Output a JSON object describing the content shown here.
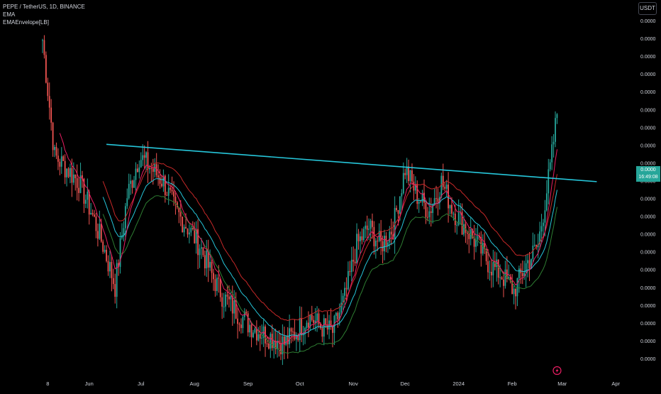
{
  "header": {
    "symbol_line": "PEPE / TetherUS, 1D, BINANCE",
    "indicator_1": "EMA",
    "indicator_2": "EMAEnvelope[LB]"
  },
  "price_axis": {
    "currency": "USDT",
    "tick_labels": [
      "0.0000",
      "0.0000",
      "0.0000",
      "0.0000",
      "0.0000",
      "0.0000",
      "0.0000",
      "0.0000",
      "0.0000",
      "0.0000",
      "0.0000",
      "0.0000",
      "0.0000",
      "0.0000",
      "0.0000",
      "0.0000",
      "0.0000",
      "0.0000",
      "0.0000",
      "0.0000"
    ],
    "last_price": "0.0000",
    "countdown": "16:49:08"
  },
  "time_axis": {
    "tick_labels": [
      "8",
      "Jun",
      "Jul",
      "Aug",
      "Sep",
      "Oct",
      "Nov",
      "Dec",
      "2024",
      "Feb",
      "Mar",
      "Apr"
    ]
  },
  "chart_data": {
    "type": "line",
    "title": "PEPE / TetherUS, 1D, BINANCE",
    "xlabel": "",
    "ylabel": "",
    "x_range": [
      "2023-05-05",
      "2024-04-12"
    ],
    "y_scale": "log",
    "series": [
      {
        "name": "PEPE / TetherUS",
        "style": "candles",
        "x": [
          "2023-05-05",
          "2023-05-12",
          "2023-05-19",
          "2023-05-26",
          "2023-06-02",
          "2023-06-09",
          "2023-06-16",
          "2023-06-23",
          "2023-06-30",
          "2023-07-07",
          "2023-07-14",
          "2023-07-21",
          "2023-07-28",
          "2023-08-04",
          "2023-08-11",
          "2023-08-18",
          "2023-08-25",
          "2023-09-01",
          "2023-09-08",
          "2023-09-15",
          "2023-09-22",
          "2023-09-29",
          "2023-10-06",
          "2023-10-13",
          "2023-10-20",
          "2023-10-27",
          "2023-11-03",
          "2023-11-10",
          "2023-11-17",
          "2023-11-24",
          "2023-12-01",
          "2023-12-08",
          "2023-12-15",
          "2023-12-22",
          "2023-12-29",
          "2024-01-05",
          "2024-01-12",
          "2024-01-19",
          "2024-01-26",
          "2024-02-02",
          "2024-02-09",
          "2024-02-16",
          "2024-02-23",
          "2024-02-27"
        ],
        "y": [
          3e-06,
          1.7e-06,
          1.6e-06,
          1.5e-06,
          1.3e-06,
          1.1e-06,
          9e-07,
          1.4e-06,
          1.7e-06,
          1.6e-06,
          1.5e-06,
          1.3e-06,
          1.2e-06,
          1.1e-06,
          9.5e-07,
          8.5e-07,
          8e-07,
          7.5e-07,
          7.2e-07,
          7e-07,
          6.8e-07,
          7.2e-07,
          7.8e-07,
          7.4e-07,
          7.2e-07,
          8.5e-07,
          1.1e-06,
          1.2e-06,
          1.1e-06,
          1.2e-06,
          1.6e-06,
          1.4e-06,
          1.3e-06,
          1.5e-06,
          1.3e-06,
          1.2e-06,
          1.1e-06,
          1e-06,
          9.5e-07,
          8.8e-07,
          1e-06,
          1.1e-06,
          1.6e-06,
          2.1e-06
        ],
        "color_up": "#26a69a",
        "color_down": "#ef5350"
      },
      {
        "name": "EMA",
        "style": "line",
        "color": "#e91e63"
      },
      {
        "name": "EMAEnvelope upper",
        "style": "line",
        "color": "#c62828"
      },
      {
        "name": "EMAEnvelope basis",
        "style": "line",
        "color": "#26c6da"
      },
      {
        "name": "EMAEnvelope lower",
        "style": "line",
        "color": "#2e7d32"
      },
      {
        "name": "Trend line",
        "style": "line",
        "color": "#26c6da",
        "x": [
          "2023-06-11",
          "2024-03-21"
        ],
        "y": [
          1.8e-06,
          1.5e-06
        ]
      }
    ],
    "grid": false,
    "legend": "top-left",
    "last_price": "0.0000",
    "countdown": "16:49:08"
  },
  "colors": {
    "background": "#000000",
    "text": "#d1d4dc",
    "up": "#26a69a",
    "down": "#ef5350",
    "trendline": "#26c6da",
    "ema": "#e91e63",
    "envelope_upper": "#c62828",
    "envelope_basis": "#26c6da",
    "envelope_lower": "#2e7d32",
    "price_tag": "#26a69a",
    "event_marker": "#e91e63"
  },
  "event_marker": {
    "icon": "lightning-icon"
  }
}
